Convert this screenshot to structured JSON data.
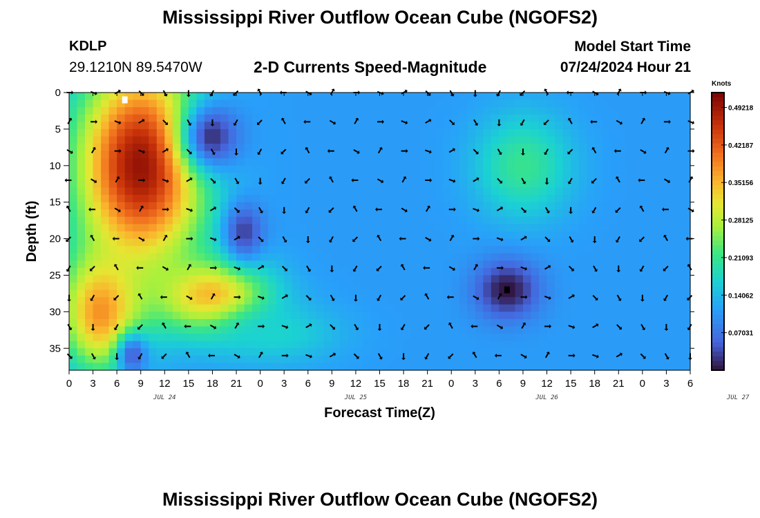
{
  "header": {
    "title": "Mississippi River Outflow Ocean Cube (NGOFS2)",
    "station_name": "KDLP",
    "station_coords": "29.1210N  89.5470W",
    "variable_title": "2-D Currents Speed-Magnitude",
    "model_label": "Model Start Time",
    "model_time": "07/24/2024 Hour 21"
  },
  "footer": {
    "title": "Mississippi River Outflow Ocean Cube (NGOFS2)"
  },
  "chart_data": {
    "type": "heatmap",
    "title": "2-D Currents Speed-Magnitude",
    "xlabel": "Forecast Time(Z)",
    "ylabel": "Depth (ft)",
    "x_tick_labels": [
      "0",
      "3",
      "6",
      "9",
      "12",
      "15",
      "18",
      "21",
      "0",
      "3",
      "6",
      "9",
      "12",
      "15",
      "18",
      "21",
      "0",
      "3",
      "6",
      "9",
      "12",
      "15",
      "18",
      "21",
      "0",
      "3",
      "6"
    ],
    "date_labels": [
      {
        "label": "JUL 24",
        "hour": 12
      },
      {
        "label": "JUL 25",
        "hour": 36
      },
      {
        "label": "JUL 26",
        "hour": 60
      },
      {
        "label": "JUL 27",
        "hour": 84
      }
    ],
    "xlim_hours": [
      0,
      78
    ],
    "y_ticks": [
      0,
      5,
      10,
      15,
      20,
      25,
      30,
      35
    ],
    "ylim_ft": [
      0,
      38
    ],
    "colorbar": {
      "unit": "Knots",
      "ticks": [
        "0.49218",
        "0.42187",
        "0.35156",
        "0.28125",
        "0.21093",
        "0.14062",
        "0.07031"
      ],
      "range": [
        0.0,
        0.52
      ]
    },
    "hot_spots": [
      {
        "hour": 9,
        "depth": 10,
        "speed": 0.5,
        "spread_h": 8,
        "spread_d": 14
      },
      {
        "hour": 4,
        "depth": 30,
        "speed": 0.38,
        "spread_h": 5,
        "spread_d": 8
      },
      {
        "hour": 18,
        "depth": 28,
        "speed": 0.36,
        "spread_h": 7,
        "spread_d": 5
      },
      {
        "hour": 57,
        "depth": 10,
        "speed": 0.21,
        "spread_h": 6,
        "spread_d": 7
      },
      {
        "hour": 26,
        "depth": 33,
        "speed": 0.17,
        "spread_h": 8,
        "spread_d": 4
      }
    ],
    "cold_spots": [
      {
        "hour": 18,
        "depth": 6,
        "speed": 0.02,
        "spread_h": 4,
        "spread_d": 5
      },
      {
        "hour": 55,
        "depth": 27,
        "speed": 0.0,
        "spread_h": 4,
        "spread_d": 4
      },
      {
        "hour": 22,
        "depth": 19,
        "speed": 0.03,
        "spread_h": 2.5,
        "spread_d": 4
      },
      {
        "hour": 8,
        "depth": 36,
        "speed": 0.05,
        "spread_h": 2,
        "spread_d": 3
      }
    ],
    "vector_spacing_hours": 3,
    "vector_depths_ft": [
      0,
      4,
      8,
      12,
      16,
      20,
      24,
      28,
      32,
      36
    ],
    "markers": [
      {
        "hour": 7,
        "depth": 1,
        "color": "#ffffff"
      },
      {
        "hour": 55,
        "depth": 27,
        "color": "#000000"
      }
    ]
  }
}
